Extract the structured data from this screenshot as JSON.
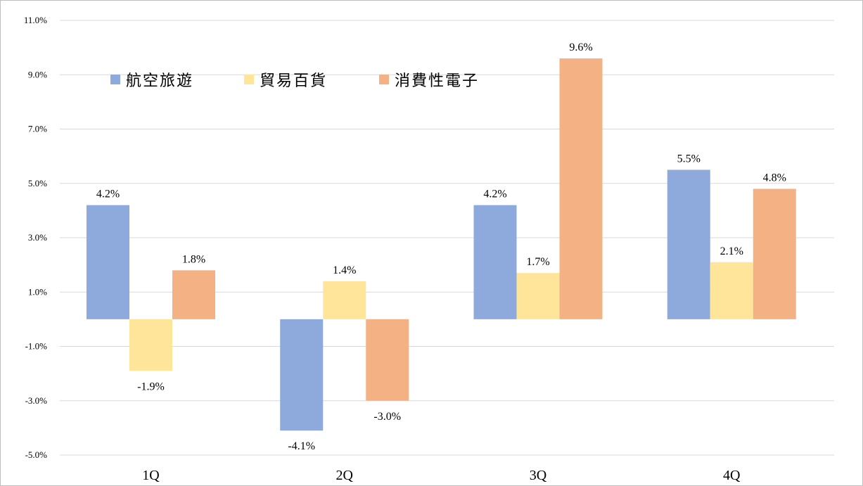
{
  "chart_data": {
    "type": "bar",
    "categories": [
      "1Q",
      "2Q",
      "3Q",
      "4Q"
    ],
    "series": [
      {
        "name": "航空旅遊",
        "color": "#8eaadc",
        "values": [
          4.2,
          -4.1,
          4.2,
          5.5
        ],
        "labels": [
          "4.2%",
          "-4.1%",
          "4.2%",
          "5.5%"
        ]
      },
      {
        "name": "貿易百貨",
        "color": "#fee599",
        "values": [
          -1.9,
          1.4,
          1.7,
          2.1
        ],
        "labels": [
          "-1.9%",
          "1.4%",
          "1.7%",
          "2.1%"
        ]
      },
      {
        "name": "消費性電子",
        "color": "#f4b183",
        "values": [
          1.8,
          -3.0,
          9.6,
          4.8
        ],
        "labels": [
          "1.8%",
          "-3.0%",
          "9.6%",
          "4.8%"
        ]
      }
    ],
    "yticks": [
      "11.0%",
      "9.0%",
      "7.0%",
      "5.0%",
      "3.0%",
      "1.0%",
      "-1.0%",
      "-3.0%",
      "-5.0%"
    ],
    "ytick_values": [
      11,
      9,
      7,
      5,
      3,
      1,
      -1,
      -3,
      -5
    ],
    "ylim": [
      -5,
      11
    ],
    "grid": true,
    "legend_position": "top-left",
    "title": "",
    "xlabel": "",
    "ylabel": ""
  }
}
